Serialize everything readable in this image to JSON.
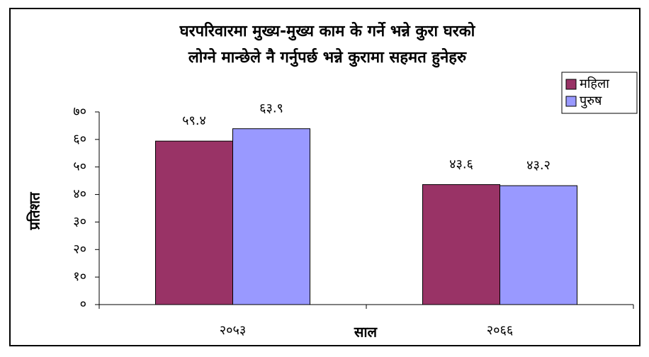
{
  "chart_data": {
    "type": "bar",
    "title": [
      "घरपरिवारमा मुख्य-मुख्य काम के गर्ने भन्ने कुरा घरको",
      "लोग्ने मान्छेले नै गर्नुपर्छ भन्ने कुरामा सहमत हुनेहरु"
    ],
    "x_label": "साल",
    "y_label": "प्रतिशत",
    "categories": [
      "२०५३",
      "२०६६"
    ],
    "series": [
      {
        "name": "महिला",
        "color": "#993366",
        "values": [
          59.4,
          43.6
        ],
        "value_labels": [
          "५९.४",
          "४३.६"
        ]
      },
      {
        "name": "पुरुष",
        "color": "#9999ff",
        "values": [
          63.9,
          43.2
        ],
        "value_labels": [
          "६३.९",
          "४३.२"
        ]
      }
    ],
    "ylim": [
      0,
      70
    ],
    "yticks": [
      {
        "value": 0,
        "label": "०"
      },
      {
        "value": 10,
        "label": "१०"
      },
      {
        "value": 20,
        "label": "२०"
      },
      {
        "value": 30,
        "label": "३०"
      },
      {
        "value": 40,
        "label": "४०"
      },
      {
        "value": 50,
        "label": "५०"
      },
      {
        "value": 60,
        "label": "६०"
      },
      {
        "value": 70,
        "label": "७०"
      }
    ],
    "grid": false,
    "legend": "right"
  }
}
